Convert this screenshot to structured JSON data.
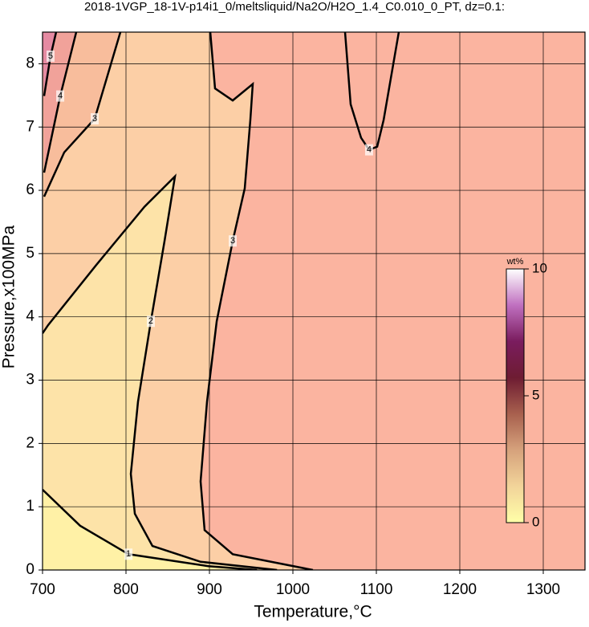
{
  "chart_data": {
    "type": "contour",
    "title": "2018-1VGP_18-1V-p14i1_0/meltsliquid/Na2O/H2O_1.4_C0.010_0_PT, dz=0.1:",
    "x_label": "Temperature,°C",
    "y_label": "Pressure,x100MPa",
    "xlim": [
      700,
      1350
    ],
    "ylim": [
      0,
      8.5
    ],
    "xticks": [
      700,
      800,
      900,
      1000,
      1100,
      1200,
      1300
    ],
    "yticks": [
      0,
      1,
      2,
      3,
      4,
      5,
      6,
      7,
      8
    ],
    "grid": true,
    "contours": [
      {
        "level": 1,
        "x": [
          700,
          745,
          803,
          899,
          957
        ],
        "y": [
          1.27,
          0.7,
          0.25,
          0.06,
          0
        ]
      },
      {
        "level": 2,
        "x": [
          981,
          889.4,
          831.7,
          810.6,
          805.8,
          814.4,
          829.8,
          846.2,
          858.7,
          822.1,
          764.4,
          706.7,
          700
        ],
        "y": [
          0,
          0.13,
          0.38,
          0.89,
          1.52,
          2.66,
          3.93,
          5.2,
          6.22,
          5.74,
          4.82,
          3.87,
          3.74
        ]
      },
      {
        "level": 3,
        "x": [
          1024,
          927.9,
          894.2,
          889.4,
          897.1,
          908.7,
          927.9,
          942.3,
          949,
          951.9,
          927.9,
          906.7,
          901
        ],
        "y": [
          0,
          0.25,
          0.63,
          1.4,
          2.66,
          3.93,
          5.2,
          6.03,
          7.11,
          7.68,
          7.42,
          7.61,
          8.5
        ]
      },
      {
        "level": 3,
        "x": [
          701.9,
          726,
          762.5,
          793.3
        ],
        "y": [
          5.9,
          6.6,
          7.13,
          8.5
        ]
      },
      {
        "level": 4,
        "x": [
          701.9,
          721.2,
          740.4
        ],
        "y": [
          6.28,
          7.49,
          8.5
        ]
      },
      {
        "level": 5,
        "x": [
          701.9,
          709.6,
          716.3
        ],
        "y": [
          7.49,
          8.12,
          8.5
        ]
      },
      {
        "level": 4,
        "x": [
          1062.5,
          1069.2,
          1081.7,
          1091.3,
          1101,
          1108.7,
          1126.9
        ],
        "y": [
          8.5,
          7.36,
          6.83,
          6.64,
          6.69,
          7.11,
          8.5
        ]
      }
    ],
    "colorbar": {
      "label": "wt%",
      "lim": [
        0,
        10
      ],
      "ticks": [
        0,
        5,
        10
      ],
      "colors": [
        "#ffffa8",
        "#f2d49a",
        "#d6a27c",
        "#a8604e",
        "#6e1c32",
        "#7a1c5e",
        "#c070c0",
        "#ffffff"
      ]
    }
  }
}
